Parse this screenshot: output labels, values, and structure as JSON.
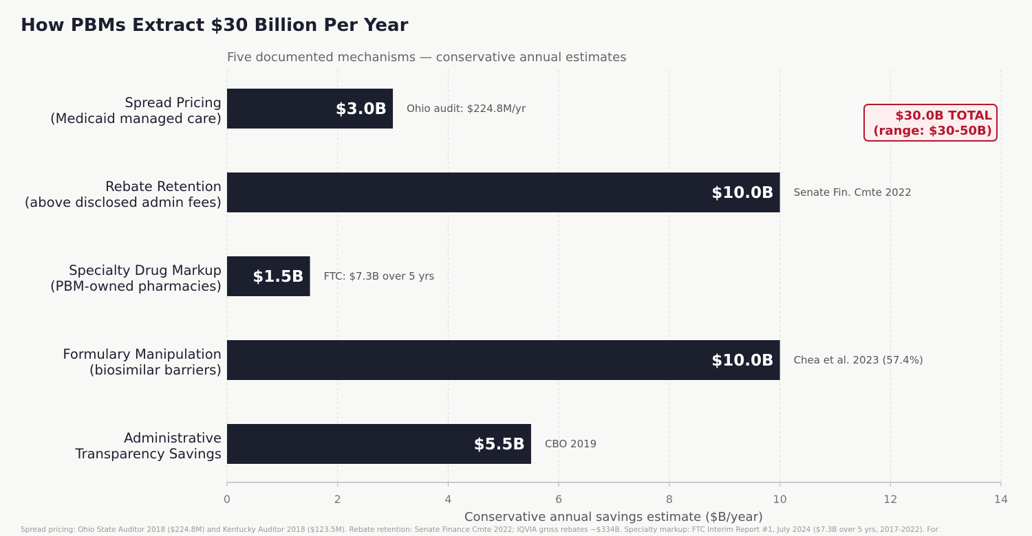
{
  "chart_data": {
    "type": "bar",
    "orientation": "horizontal",
    "title": "How PBMs Extract $30 Billion Per Year",
    "subtitle": "Five documented mechanisms — conservative annual estimates",
    "xlabel": "Conservative annual savings estimate ($B/year)",
    "xlim": [
      0,
      14
    ],
    "xticks": [
      0,
      2,
      4,
      6,
      8,
      10,
      12,
      14
    ],
    "grid": "vertical dashed",
    "categories": [
      [
        "Spread Pricing",
        "(Medicaid managed care)"
      ],
      [
        "Rebate Retention",
        "(above disclosed admin fees)"
      ],
      [
        "Specialty Drug Markup",
        "(PBM-owned pharmacies)"
      ],
      [
        "Formulary Manipulation",
        "(biosimilar barriers)"
      ],
      [
        "Administrative",
        "Transparency Savings"
      ]
    ],
    "values": [
      3.0,
      10.0,
      1.5,
      10.0,
      5.5
    ],
    "value_labels": [
      "$3.0B",
      "$10.0B",
      "$1.5B",
      "$10.0B",
      "$5.5B"
    ],
    "sources": [
      "Ohio audit: $224.8M/yr",
      "Senate Fin. Cmte 2022",
      "FTC: $7.3B over 5 yrs",
      "Chea et al. 2023 (57.4%)",
      "CBO 2019"
    ],
    "total_box": [
      "$30.0B TOTAL",
      "(range: $30-50B)"
    ],
    "footer": "Spread pricing: Ohio State Auditor 2018 ($224.8M) and Kentucky Auditor 2018 ($123.5M).  Rebate retention: Senate Finance Cmte 2022; IQVIA gross rebates ~$334B.  Specialty markup: FTC Interim Report #1, July 2024 ($7.3B over 5 yrs, 2017-2022).  For",
    "colors": {
      "bar": "#1b1f2e",
      "background": "#f8f8f7",
      "accent": "#b3182e",
      "total_box_fill": "#fdeef0",
      "grid": "#dddddd"
    }
  }
}
